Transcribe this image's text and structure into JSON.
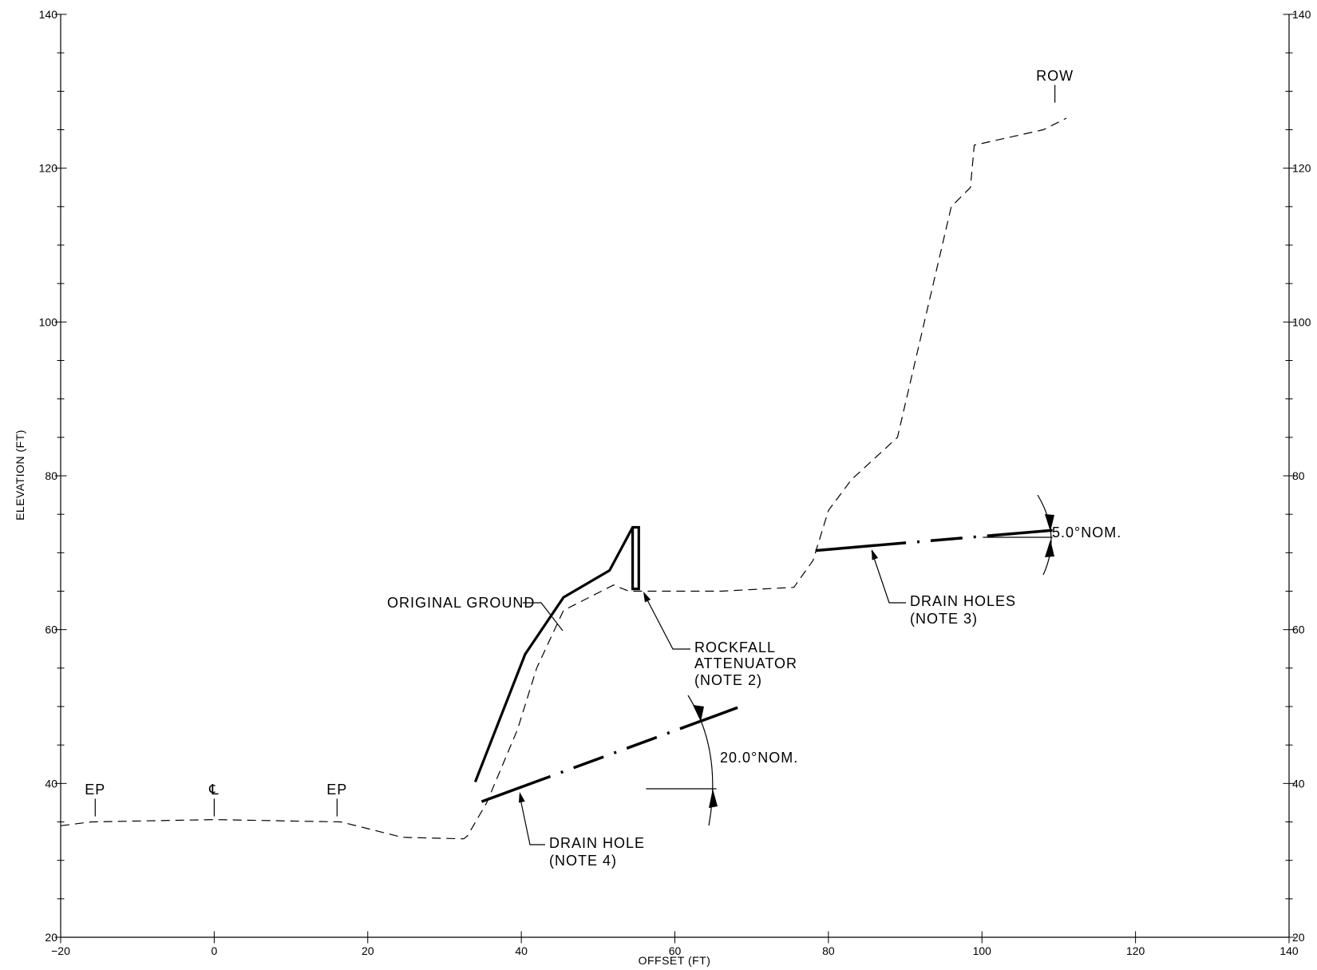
{
  "chart_data": {
    "type": "line",
    "xlabel": "OFFSET (FT)",
    "ylabel": "ELEVATION (FT)",
    "xlim": [
      -20,
      140
    ],
    "ylim": [
      20,
      140
    ],
    "x_ticks": [
      "-20",
      "0",
      "20",
      "40",
      "60",
      "80",
      "100",
      "120",
      "140"
    ],
    "y_ticks": [
      "20",
      "40",
      "60",
      "80",
      "100",
      "120",
      "140"
    ],
    "series": [
      {
        "name": "ORIGINAL GROUND",
        "style": "dashed",
        "x": [
          -20,
          -16,
          0,
          16.5,
          24.5,
          32.5,
          33,
          35.5,
          39.5,
          42,
          45.5,
          52,
          54,
          66,
          75.5,
          78,
          80,
          83,
          89,
          96,
          98.5,
          99,
          108,
          111
        ],
        "y": [
          34.5,
          35,
          35.3,
          35,
          33,
          32.8,
          33.2,
          37.5,
          47,
          55,
          62.5,
          65.8,
          65,
          65,
          65.5,
          69,
          75.5,
          79.5,
          85,
          115,
          117.5,
          123,
          125,
          126.5
        ]
      },
      {
        "name": "ROCKFALL ATTENUATOR",
        "style": "solid-heavy",
        "x": [
          34,
          40.5,
          45.5,
          51.5,
          54.5,
          55.3,
          55.3,
          54.5,
          54.5
        ],
        "y": [
          40.2,
          56.8,
          64.2,
          67.7,
          73.3,
          73.3,
          65.3,
          65.3,
          73.3
        ]
      },
      {
        "name": "DRAIN HOLE (NOTE 4)",
        "style": "dash-dot",
        "angle_deg": 20.0,
        "x": [
          35,
          63,
          68
        ],
        "y": [
          37.7,
          47.9,
          49.8
        ]
      },
      {
        "name": "DRAIN HOLES (NOTE 3)",
        "style": "dash-dot",
        "angle_deg": 5.0,
        "x": [
          78.5,
          109
        ],
        "y": [
          70.3,
          72.9
        ]
      }
    ],
    "station_markers": [
      {
        "label": "EP",
        "x": -15.5
      },
      {
        "label": "℄",
        "x": 0
      },
      {
        "label": "EP",
        "x": 16
      }
    ],
    "row_marker": {
      "label": "ROW",
      "x": 109.5
    },
    "annotations": {
      "original_ground": "ORIGINAL GROUND",
      "rockfall_line1": "ROCKFALL",
      "rockfall_line2": "ATTENUATOR",
      "rockfall_line3": "(NOTE 2)",
      "drain_hole_line1": "DRAIN HOLE",
      "drain_hole_line2": "(NOTE 4)",
      "drain_holes_line1": "DRAIN HOLES",
      "drain_holes_line2": "(NOTE 3)",
      "angle_20": "20.0°NOM.",
      "angle_5": "5.0°NOM."
    }
  }
}
